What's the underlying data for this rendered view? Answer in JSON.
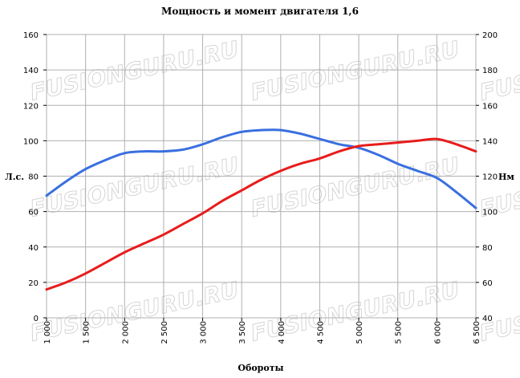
{
  "chart_data": {
    "type": "line",
    "title": "Мощность и момент двигателя 1,6",
    "xlabel": "Обороты",
    "ylabel_left": "Л.с.",
    "ylabel_right": "Нм",
    "x_ticks": [
      "1 000",
      "1 500",
      "2 000",
      "2 500",
      "3 000",
      "3 500",
      "4 000",
      "4 500",
      "5 000",
      "5 500",
      "6 000",
      "6 500"
    ],
    "x_values": [
      1000,
      1500,
      2000,
      2500,
      3000,
      3500,
      4000,
      4500,
      5000,
      5500,
      6000,
      6500
    ],
    "xlim": [
      1000,
      6500
    ],
    "ylim_left": [
      0,
      160
    ],
    "ylim_right": [
      40,
      200
    ],
    "y_ticks_left": [
      0,
      20,
      40,
      60,
      80,
      100,
      120,
      140,
      160
    ],
    "y_ticks_right": [
      40,
      60,
      80,
      100,
      120,
      140,
      160,
      180,
      200
    ],
    "grid": true,
    "series": [
      {
        "axis": "right",
        "color": "#3a6fe0",
        "x": [
          1000,
          1250,
          1500,
          1750,
          2000,
          2250,
          2500,
          2750,
          3000,
          3250,
          3500,
          3750,
          4000,
          4250,
          4500,
          4750,
          5000,
          5250,
          5500,
          5750,
          6000,
          6250,
          6500
        ],
        "values": [
          109,
          117,
          124,
          129,
          133,
          134,
          134,
          135,
          138,
          142,
          145,
          146,
          146,
          144,
          141,
          138,
          136,
          132,
          127,
          123,
          119,
          111,
          102
        ]
      },
      {
        "axis": "left",
        "color": "#e81c1c",
        "x": [
          1000,
          1250,
          1500,
          1750,
          2000,
          2250,
          2500,
          2750,
          3000,
          3250,
          3500,
          3750,
          4000,
          4250,
          4500,
          4750,
          5000,
          5250,
          5500,
          5750,
          6000,
          6250,
          6500
        ],
        "values": [
          16,
          20,
          25,
          31,
          37,
          42,
          47,
          53,
          59,
          66,
          72,
          78,
          83,
          87,
          90,
          94,
          97,
          98,
          99,
          100,
          101,
          98,
          94
        ]
      }
    ]
  },
  "watermark": "FUSIONGURU.RU"
}
